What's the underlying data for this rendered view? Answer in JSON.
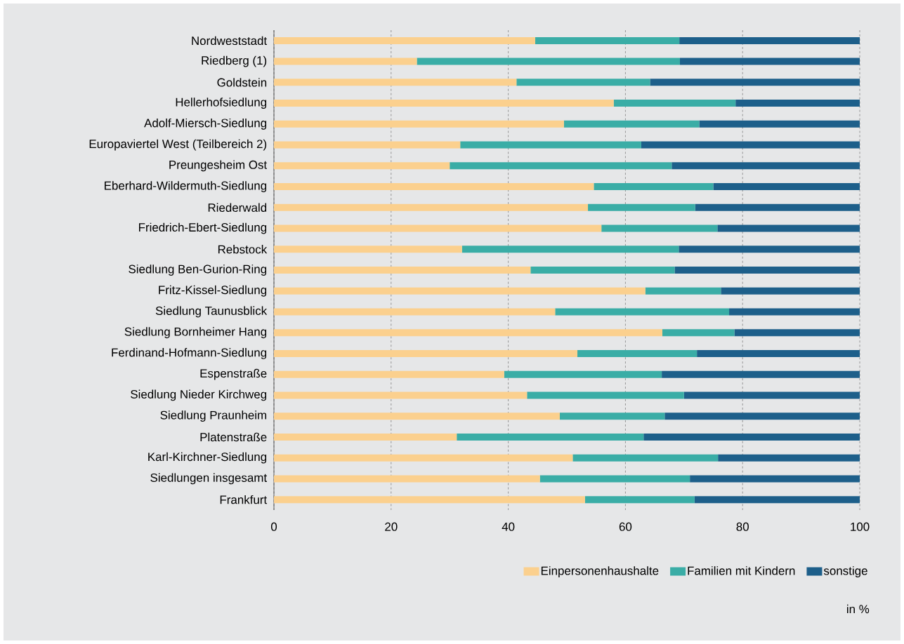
{
  "chart_data": {
    "type": "bar",
    "orientation": "horizontal",
    "stacked": true,
    "categories": [
      "Nordweststadt",
      "Riedberg (1)",
      "Goldstein",
      "Hellerhofsiedlung",
      "Adolf-Miersch-Siedlung",
      "Europaviertel West (Teilbereich 2)",
      "Preungesheim Ost",
      "Eberhard-Wildermuth-Siedlung",
      "Riederwald",
      "Friedrich-Ebert-Siedlung",
      "Rebstock",
      "Siedlung Ben-Gurion-Ring",
      "Fritz-Kissel-Siedlung",
      "Siedlung Taunusblick",
      "Siedlung Bornheimer Hang",
      "Ferdinand-Hofmann-Siedlung",
      "Espenstraße",
      "Siedlung Nieder Kirchweg",
      "Siedlung Praunheim",
      "Platenstraße",
      "Karl-Kirchner-Siedlung",
      "Siedlungen insgesamt",
      "Frankfurt"
    ],
    "series": [
      {
        "name": "Einpersonenhaushalte",
        "color": "#fbd08e",
        "values": [
          44.6,
          24.4,
          41.4,
          58.0,
          49.5,
          31.8,
          30.0,
          54.6,
          53.6,
          55.9,
          32.1,
          43.8,
          63.4,
          48.0,
          66.3,
          51.8,
          39.3,
          43.2,
          48.8,
          31.2,
          51.0,
          45.4,
          53.1
        ]
      },
      {
        "name": "Familien mit Kindern",
        "color": "#3aada6",
        "values": [
          24.6,
          44.9,
          22.8,
          20.8,
          23.1,
          30.9,
          37.9,
          20.4,
          18.3,
          19.8,
          37.0,
          24.6,
          12.9,
          29.7,
          12.3,
          20.4,
          26.9,
          26.8,
          17.9,
          31.9,
          24.8,
          25.6,
          18.7
        ]
      },
      {
        "name": "sonstige",
        "color": "#1d5f8a",
        "values": [
          30.8,
          30.7,
          35.8,
          21.2,
          27.4,
          37.3,
          32.1,
          25.0,
          28.1,
          24.3,
          30.9,
          31.6,
          23.7,
          22.3,
          21.4,
          27.8,
          33.8,
          30.0,
          33.3,
          36.9,
          24.2,
          29.0,
          28.2
        ]
      }
    ],
    "xlim": [
      0,
      100
    ],
    "xticks": [
      0,
      20,
      40,
      60,
      80,
      100
    ],
    "grid": "x",
    "legend": "bottom right",
    "annotations": [
      "in %"
    ]
  }
}
